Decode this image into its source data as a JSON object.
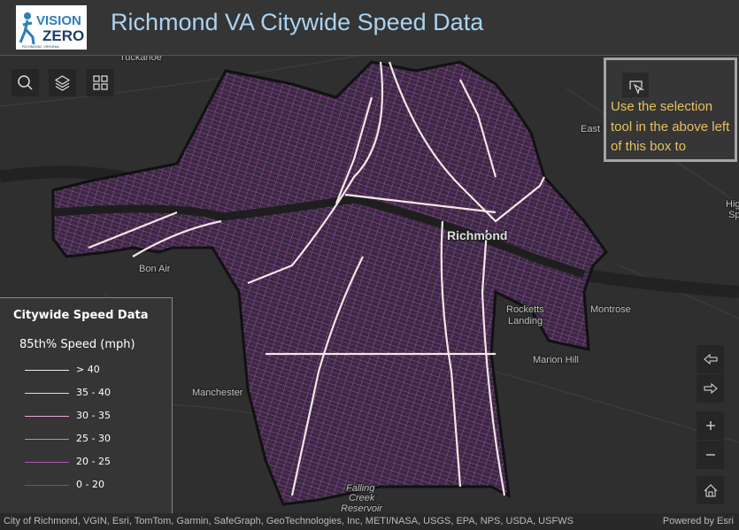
{
  "header": {
    "title": "Richmond VA Citywide Speed Data",
    "logo": {
      "line1": "VISION",
      "line2": "ZERO",
      "line3": "RICHMOND, VIRGINIA"
    }
  },
  "map_labels": [
    "Tuckahoe",
    "East",
    "Richmond",
    "Bon Air",
    "Rocketts",
    "Landing",
    "Montrose",
    "Marion Hill",
    "Manchester",
    "Falling",
    "Creek",
    "Reservoir",
    "Hig",
    "Sp"
  ],
  "info_box": {
    "text": "Use the selection tool in the above left of this box to"
  },
  "legend": {
    "title": "Citywide Speed Data",
    "subtitle": "85th% Speed (mph)",
    "items": [
      {
        "label": "> 40",
        "color": "#f7ecec"
      },
      {
        "label": "35 - 40",
        "color": "#f0d4e4"
      },
      {
        "label": "30 - 35",
        "color": "#e2a6dc"
      },
      {
        "label": "25 - 30",
        "color": "#c87ccc"
      },
      {
        "label": "20 - 25",
        "color": "#a958b4"
      },
      {
        "label": "0 - 20",
        "color": "#86409c"
      }
    ]
  },
  "attribution": {
    "sources": "City of Richmond, VGIN, Esri, TomTom, Garmin, SafeGraph, GeoTechnologies, Inc, METI/NASA, USGS, EPA, NPS, USDA, USFWS",
    "powered": "Powered by Esri"
  }
}
